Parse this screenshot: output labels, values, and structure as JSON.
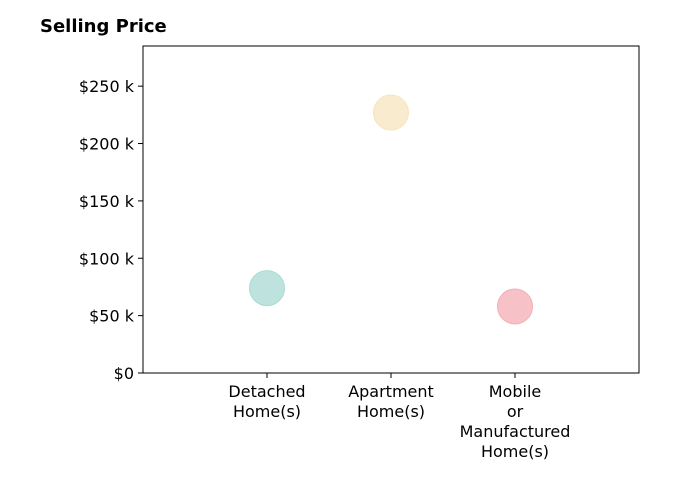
{
  "chart_data": {
    "type": "scatter",
    "title": "Selling Price",
    "xlabel": "",
    "ylabel": "",
    "categories": [
      "Detached Home(s)",
      "Apartment Home(s)",
      "Mobile or Manufactured Home(s)"
    ],
    "category_label_lines": [
      [
        "Detached",
        "Home(s)"
      ],
      [
        "Apartment",
        "Home(s)"
      ],
      [
        "Mobile",
        "or",
        "Manufactured",
        "Home(s)"
      ]
    ],
    "values": [
      74000,
      227000,
      58000
    ],
    "colors": [
      "#a8dad3",
      "#f6e4bd",
      "#f4aeb4"
    ],
    "ylim": [
      0,
      285000
    ],
    "yticks": [
      0,
      50000,
      100000,
      150000,
      200000,
      250000
    ],
    "ytick_labels": [
      "$0",
      "$50 k",
      "$100 k",
      "$150 k",
      "$200 k",
      "$250 k"
    ],
    "grid": false,
    "legend": "none"
  }
}
